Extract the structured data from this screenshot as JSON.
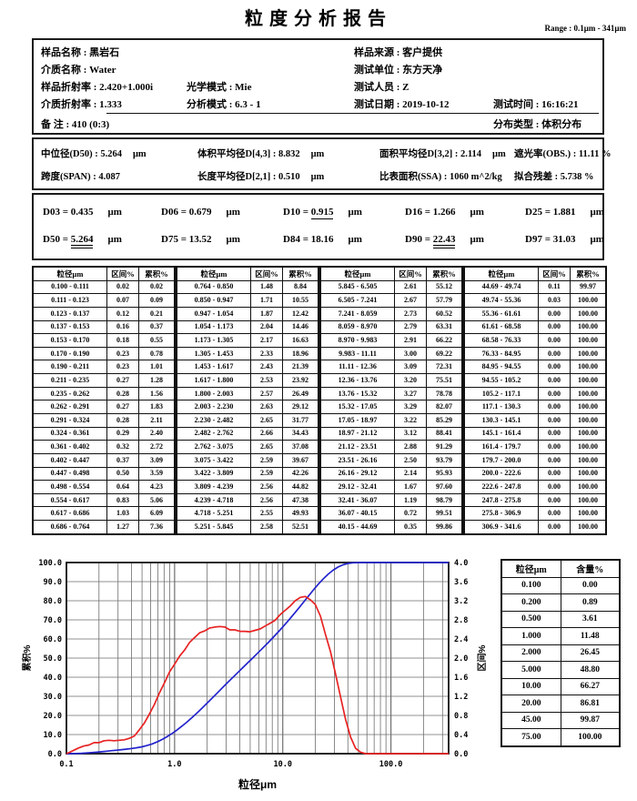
{
  "title": "粒度分析报告",
  "range_label": "Range : 0.1μm - 341μm",
  "info": {
    "sample_name": {
      "label": "样品名称 : ",
      "value": "黑岩石"
    },
    "sample_source": {
      "label": "样品来源 : ",
      "value": "客户提供"
    },
    "medium_name": {
      "label": "介质名称 : ",
      "value": "Water"
    },
    "test_unit": {
      "label": "测试单位 : ",
      "value": "东方天净"
    },
    "sample_ri": {
      "label": "样品折射率 : ",
      "value": "2.420+1.000i"
    },
    "optical_mode": {
      "label": "光学模式 : ",
      "value": "Mie"
    },
    "tester": {
      "label": "测试人员 : ",
      "value": "Z"
    },
    "medium_ri": {
      "label": "介质折射率 : ",
      "value": "1.333"
    },
    "analysis_mode": {
      "label": "分析模式 : ",
      "value": "6.3 - 1"
    },
    "test_date": {
      "label": "测试日期 : ",
      "value": "2019-10-12"
    },
    "test_time": {
      "label": "测试时间 : ",
      "value": "16:16:21"
    },
    "remark": {
      "label": "备  注 : ",
      "value": "410  (0:3)"
    },
    "distribution_type": {
      "label": "分布类型 : ",
      "value": "体积分布"
    }
  },
  "stats": [
    {
      "label": "中位径(D50) : ",
      "value": "5.264",
      "unit": "μm"
    },
    {
      "label": "体积平均径D[4,3] : ",
      "value": "8.832",
      "unit": "μm"
    },
    {
      "label": "面积平均径D[3,2] : ",
      "value": "2.114",
      "unit": "μm"
    },
    {
      "label": "遮光率(OBS.) : ",
      "value": "11.11 %",
      "unit": ""
    },
    {
      "label": "跨度(SPAN) : ",
      "value": "4.087",
      "unit": ""
    },
    {
      "label": "长度平均径D[2,1] : ",
      "value": "0.510",
      "unit": "μm"
    },
    {
      "label": "比表面积(SSA) : ",
      "value": "1060 m^2/kg",
      "unit": ""
    },
    {
      "label": "拟合残差 : ",
      "value": "5.738 %",
      "unit": ""
    }
  ],
  "percentiles": [
    {
      "label": "D03 = ",
      "value": "0.435",
      "unit": "μm",
      "underline": "none"
    },
    {
      "label": "D06 = ",
      "value": "0.679",
      "unit": "μm",
      "underline": "none"
    },
    {
      "label": "D10 = ",
      "value": "0.915",
      "unit": "μm",
      "underline": "single"
    },
    {
      "label": "D16 = ",
      "value": "1.266",
      "unit": "μm",
      "underline": "none"
    },
    {
      "label": "D25 = ",
      "value": "1.881",
      "unit": "μm",
      "underline": "none"
    },
    {
      "label": "D50 = ",
      "value": "5.264",
      "unit": "μm",
      "underline": "double"
    },
    {
      "label": "D75 = ",
      "value": "13.52",
      "unit": "μm",
      "underline": "none"
    },
    {
      "label": "D84 = ",
      "value": "18.16",
      "unit": "μm",
      "underline": "none"
    },
    {
      "label": "D90 = ",
      "value": "22.43",
      "unit": "μm",
      "underline": "double"
    },
    {
      "label": "D97 = ",
      "value": "31.03",
      "unit": "μm",
      "underline": "none"
    }
  ],
  "main_table": {
    "headers": [
      "粒径μm",
      "区间%",
      "累积%"
    ],
    "groups": [
      [
        [
          "0.100 - 0.111",
          "0.02",
          "0.02"
        ],
        [
          "0.111 - 0.123",
          "0.07",
          "0.09"
        ],
        [
          "0.123 - 0.137",
          "0.12",
          "0.21"
        ],
        [
          "0.137 - 0.153",
          "0.16",
          "0.37"
        ],
        [
          "0.153 - 0.170",
          "0.18",
          "0.55"
        ],
        [
          "0.170 - 0.190",
          "0.23",
          "0.78"
        ],
        [
          "0.190 - 0.211",
          "0.23",
          "1.01"
        ],
        [
          "0.211 - 0.235",
          "0.27",
          "1.28"
        ],
        [
          "0.235 - 0.262",
          "0.28",
          "1.56"
        ],
        [
          "0.262 - 0.291",
          "0.27",
          "1.83"
        ],
        [
          "0.291 - 0.324",
          "0.28",
          "2.11"
        ],
        [
          "0.324 - 0.361",
          "0.29",
          "2.40"
        ],
        [
          "0.361 - 0.402",
          "0.32",
          "2.72"
        ],
        [
          "0.402 - 0.447",
          "0.37",
          "3.09"
        ],
        [
          "0.447 - 0.498",
          "0.50",
          "3.59"
        ],
        [
          "0.498 - 0.554",
          "0.64",
          "4.23"
        ],
        [
          "0.554 - 0.617",
          "0.83",
          "5.06"
        ],
        [
          "0.617 - 0.686",
          "1.03",
          "6.09"
        ],
        [
          "0.686 - 0.764",
          "1.27",
          "7.36"
        ]
      ],
      [
        [
          "0.764 - 0.850",
          "1.48",
          "8.84"
        ],
        [
          "0.850 - 0.947",
          "1.71",
          "10.55"
        ],
        [
          "0.947 - 1.054",
          "1.87",
          "12.42"
        ],
        [
          "1.054 - 1.173",
          "2.04",
          "14.46"
        ],
        [
          "1.173 - 1.305",
          "2.17",
          "16.63"
        ],
        [
          "1.305 - 1.453",
          "2.33",
          "18.96"
        ],
        [
          "1.453 - 1.617",
          "2.43",
          "21.39"
        ],
        [
          "1.617 - 1.800",
          "2.53",
          "23.92"
        ],
        [
          "1.800 - 2.003",
          "2.57",
          "26.49"
        ],
        [
          "2.003 - 2.230",
          "2.63",
          "29.12"
        ],
        [
          "2.230 - 2.482",
          "2.65",
          "31.77"
        ],
        [
          "2.482 - 2.762",
          "2.66",
          "34.43"
        ],
        [
          "2.762 - 3.075",
          "2.65",
          "37.08"
        ],
        [
          "3.075 - 3.422",
          "2.59",
          "39.67"
        ],
        [
          "3.422 - 3.809",
          "2.59",
          "42.26"
        ],
        [
          "3.809 - 4.239",
          "2.56",
          "44.82"
        ],
        [
          "4.239 - 4.718",
          "2.56",
          "47.38"
        ],
        [
          "4.718 - 5.251",
          "2.55",
          "49.93"
        ],
        [
          "5.251 - 5.845",
          "2.58",
          "52.51"
        ]
      ],
      [
        [
          "5.845 - 6.505",
          "2.61",
          "55.12"
        ],
        [
          "6.505 - 7.241",
          "2.67",
          "57.79"
        ],
        [
          "7.241 - 8.059",
          "2.73",
          "60.52"
        ],
        [
          "8.059 - 8.970",
          "2.79",
          "63.31"
        ],
        [
          "8.970 - 9.983",
          "2.91",
          "66.22"
        ],
        [
          "9.983 - 11.11",
          "3.00",
          "69.22"
        ],
        [
          "11.11 - 12.36",
          "3.09",
          "72.31"
        ],
        [
          "12.36 - 13.76",
          "3.20",
          "75.51"
        ],
        [
          "13.76 - 15.32",
          "3.27",
          "78.78"
        ],
        [
          "15.32 - 17.05",
          "3.29",
          "82.07"
        ],
        [
          "17.05 - 18.97",
          "3.22",
          "85.29"
        ],
        [
          "18.97 - 21.12",
          "3.12",
          "88.41"
        ],
        [
          "21.12 - 23.51",
          "2.88",
          "91.29"
        ],
        [
          "23.51 - 26.16",
          "2.50",
          "93.79"
        ],
        [
          "26.16 - 29.12",
          "2.14",
          "95.93"
        ],
        [
          "29.12 - 32.41",
          "1.67",
          "97.60"
        ],
        [
          "32.41 - 36.07",
          "1.19",
          "98.79"
        ],
        [
          "36.07 - 40.15",
          "0.72",
          "99.51"
        ],
        [
          "40.15 - 44.69",
          "0.35",
          "99.86"
        ]
      ],
      [
        [
          "44.69 - 49.74",
          "0.11",
          "99.97"
        ],
        [
          "49.74 - 55.36",
          "0.03",
          "100.00"
        ],
        [
          "55.36 - 61.61",
          "0.00",
          "100.00"
        ],
        [
          "61.61 - 68.58",
          "0.00",
          "100.00"
        ],
        [
          "68.58 - 76.33",
          "0.00",
          "100.00"
        ],
        [
          "76.33 - 84.95",
          "0.00",
          "100.00"
        ],
        [
          "84.95 - 94.55",
          "0.00",
          "100.00"
        ],
        [
          "94.55 - 105.2",
          "0.00",
          "100.00"
        ],
        [
          "105.2 - 117.1",
          "0.00",
          "100.00"
        ],
        [
          "117.1 - 130.3",
          "0.00",
          "100.00"
        ],
        [
          "130.3 - 145.1",
          "0.00",
          "100.00"
        ],
        [
          "145.1 - 161.4",
          "0.00",
          "100.00"
        ],
        [
          "161.4 - 179.7",
          "0.00",
          "100.00"
        ],
        [
          "179.7 - 200.0",
          "0.00",
          "100.00"
        ],
        [
          "200.0 - 222.6",
          "0.00",
          "100.00"
        ],
        [
          "222.6 - 247.8",
          "0.00",
          "100.00"
        ],
        [
          "247.8 - 275.8",
          "0.00",
          "100.00"
        ],
        [
          "275.8 - 306.9",
          "0.00",
          "100.00"
        ],
        [
          "306.9 - 341.6",
          "0.00",
          "100.00"
        ]
      ]
    ]
  },
  "side_table": {
    "headers": [
      "粒径μm",
      "含量%"
    ],
    "rows": [
      [
        "0.100",
        "0.00"
      ],
      [
        "0.200",
        "0.89"
      ],
      [
        "0.500",
        "3.61"
      ],
      [
        "1.000",
        "11.48"
      ],
      [
        "2.000",
        "26.45"
      ],
      [
        "5.000",
        "48.80"
      ],
      [
        "10.00",
        "66.27"
      ],
      [
        "20.00",
        "86.81"
      ],
      [
        "45.00",
        "99.87"
      ],
      [
        "75.00",
        "100.00"
      ]
    ]
  },
  "chart_data": {
    "type": "line",
    "xlabel": "粒径μm",
    "x_scale": "log",
    "xlim": [
      0.1,
      341.6
    ],
    "x_ticks": [
      0.1,
      1.0,
      10.0,
      100.0
    ],
    "grid": true,
    "left_axis": {
      "label": "累积%",
      "lim": [
        0,
        100
      ],
      "tick_step": 10
    },
    "right_axis": {
      "label": "区间%",
      "lim": [
        0,
        4
      ],
      "tick_step": 0.4
    },
    "bin_edges": [
      0.1,
      0.111,
      0.123,
      0.137,
      0.153,
      0.17,
      0.19,
      0.211,
      0.235,
      0.262,
      0.291,
      0.324,
      0.361,
      0.402,
      0.447,
      0.498,
      0.554,
      0.617,
      0.686,
      0.764,
      0.85,
      0.947,
      1.054,
      1.173,
      1.305,
      1.453,
      1.617,
      1.8,
      2.003,
      2.23,
      2.482,
      2.762,
      3.075,
      3.422,
      3.809,
      4.239,
      4.718,
      5.251,
      5.845,
      6.505,
      7.241,
      8.059,
      8.97,
      9.983,
      11.11,
      12.36,
      13.76,
      15.32,
      17.05,
      18.97,
      21.12,
      23.51,
      26.16,
      29.12,
      32.41,
      36.07,
      40.15,
      44.69,
      49.74,
      55.36,
      61.61,
      68.58,
      76.33,
      84.95,
      94.55,
      105.2,
      117.1,
      130.3,
      145.1,
      161.4,
      179.7,
      200.0,
      222.6,
      247.8,
      275.8,
      306.9,
      341.6
    ],
    "series": [
      {
        "name": "累积%",
        "axis": "left",
        "color": "#2323cd",
        "x_mode": "bin_upper",
        "values": [
          0.02,
          0.09,
          0.21,
          0.37,
          0.55,
          0.78,
          1.01,
          1.28,
          1.56,
          1.83,
          2.11,
          2.4,
          2.72,
          3.09,
          3.59,
          4.23,
          5.06,
          6.09,
          7.36,
          8.84,
          10.55,
          12.42,
          14.46,
          16.63,
          18.96,
          21.39,
          23.92,
          26.49,
          29.12,
          31.77,
          34.43,
          37.08,
          39.67,
          42.26,
          44.82,
          47.38,
          49.93,
          52.51,
          55.12,
          57.79,
          60.52,
          63.31,
          66.22,
          69.22,
          72.31,
          75.51,
          78.78,
          82.07,
          85.29,
          88.41,
          91.29,
          93.79,
          95.93,
          97.6,
          98.79,
          99.51,
          99.86,
          99.97,
          100.0,
          100.0,
          100.0,
          100.0,
          100.0,
          100.0,
          100.0,
          100.0,
          100.0,
          100.0,
          100.0,
          100.0,
          100.0,
          100.0,
          100.0,
          100.0,
          100.0,
          100.0
        ]
      },
      {
        "name": "区间%",
        "axis": "right",
        "color": "#e82222",
        "x_mode": "bin_mid",
        "values": [
          0.02,
          0.07,
          0.12,
          0.16,
          0.18,
          0.23,
          0.23,
          0.27,
          0.28,
          0.27,
          0.28,
          0.29,
          0.32,
          0.37,
          0.5,
          0.64,
          0.83,
          1.03,
          1.27,
          1.48,
          1.71,
          1.87,
          2.04,
          2.17,
          2.33,
          2.43,
          2.53,
          2.57,
          2.63,
          2.65,
          2.66,
          2.65,
          2.59,
          2.59,
          2.56,
          2.56,
          2.55,
          2.58,
          2.61,
          2.67,
          2.73,
          2.79,
          2.91,
          3.0,
          3.09,
          3.2,
          3.27,
          3.29,
          3.22,
          3.12,
          2.88,
          2.5,
          2.14,
          1.67,
          1.19,
          0.72,
          0.35,
          0.11,
          0.03,
          0.0,
          0.0,
          0.0,
          0.0,
          0.0,
          0.0,
          0.0,
          0.0,
          0.0,
          0.0,
          0.0,
          0.0,
          0.0,
          0.0,
          0.0,
          0.0,
          0.0
        ]
      }
    ]
  }
}
